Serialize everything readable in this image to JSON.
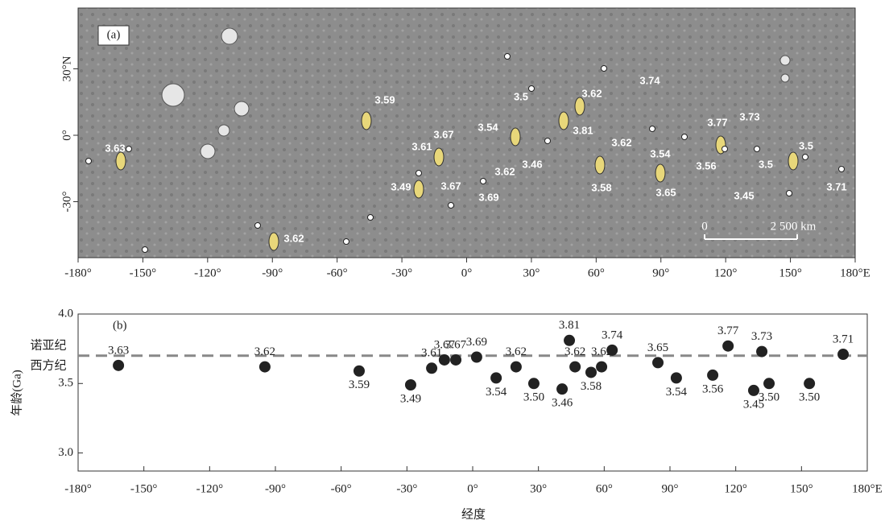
{
  "map": {
    "label": "(a)",
    "lat_ticks": [
      {
        "value": 30,
        "label": "30°N"
      },
      {
        "value": 0,
        "label": "0°"
      },
      {
        "value": -30,
        "label": "-30°"
      }
    ],
    "lon_ticks": [
      {
        "value": -180,
        "label": "-180°"
      },
      {
        "value": -150,
        "label": "-150°"
      },
      {
        "value": -120,
        "label": "-120°"
      },
      {
        "value": -90,
        "label": "-90°"
      },
      {
        "value": -60,
        "label": "-60°"
      },
      {
        "value": -30,
        "label": "-30°"
      },
      {
        "value": 0,
        "label": "0°"
      },
      {
        "value": 30,
        "label": "30°"
      },
      {
        "value": 60,
        "label": "60°"
      },
      {
        "value": 90,
        "label": "90°"
      },
      {
        "value": 120,
        "label": "120°"
      },
      {
        "value": 150,
        "label": "150°"
      },
      {
        "value": 180,
        "label": "180°E"
      }
    ],
    "scale_bar": [
      "0",
      "2 500 km"
    ],
    "annotations": [
      "3.63",
      "3.62",
      "3.59",
      "3.61",
      "3.67",
      "3.49",
      "3.67",
      "3.69",
      "3.54",
      "3.5",
      "3.62",
      "3.46",
      "3.81",
      "3.62",
      "3.58",
      "3.74",
      "3.62",
      "3.54",
      "3.65",
      "3.56",
      "3.77",
      "3.73",
      "3.5",
      "3.45",
      "3.5",
      "3.71"
    ]
  },
  "chart_data": {
    "type": "scatter",
    "panel_label": "(b)",
    "x_label": "经度",
    "y_label": "年龄(Ga)",
    "boundary": 3.7,
    "boundary_labels": [
      "诺亚纪",
      "西方纪"
    ],
    "color": "#222222",
    "xlim": [
      -180,
      180
    ],
    "ylim": [
      2.87,
      4.0
    ],
    "xticks": [
      {
        "value": -180,
        "label": "-180°"
      },
      {
        "value": -150,
        "label": "-150°"
      },
      {
        "value": -120,
        "label": "-120°"
      },
      {
        "value": -90,
        "label": "-90°"
      },
      {
        "value": -60,
        "label": "-60°"
      },
      {
        "value": -30,
        "label": "-30°"
      },
      {
        "value": 0,
        "label": "0°"
      },
      {
        "value": 30,
        "label": "30°"
      },
      {
        "value": 60,
        "label": "60°"
      },
      {
        "value": 90,
        "label": "90°"
      },
      {
        "value": 120,
        "label": "120°"
      },
      {
        "value": 150,
        "label": "150°"
      },
      {
        "value": 180,
        "label": "180°E"
      }
    ],
    "yticks": [
      {
        "value": 3,
        "label": "3.0"
      },
      3.5,
      {
        "value": 4,
        "label": "4.0"
      }
    ],
    "x": [
      -161.6,
      -94.8,
      -51.8,
      -28.3,
      -18.7,
      -12.9,
      -7.7,
      1.8,
      10.7,
      19.8,
      27.9,
      40.8,
      44.1,
      46.7,
      54.0,
      58.8,
      63.6,
      84.5,
      92.9,
      109.5,
      116.5,
      128.2,
      131.9,
      135.2,
      153.6,
      169.0
    ],
    "values": [
      3.63,
      3.62,
      3.59,
      3.49,
      3.61,
      3.67,
      3.67,
      3.69,
      3.54,
      3.62,
      3.5,
      3.46,
      3.81,
      3.62,
      3.58,
      3.62,
      3.74,
      3.65,
      3.54,
      3.56,
      3.77,
      3.45,
      3.73,
      3.5,
      3.5,
      3.71
    ],
    "value_labels": [
      "3.63",
      "3.62",
      "3.59",
      "3.49",
      "3.61",
      "3.67",
      "3.67",
      "3.69",
      "3.54",
      "3.62",
      "3.50",
      "3.46",
      "3.81",
      "3.62",
      "3.58",
      "3.62",
      "3.74",
      "3.65",
      "3.54",
      "3.56",
      "3.77",
      "3.45",
      "3.73",
      "3.50",
      "3.50",
      "3.71"
    ]
  }
}
